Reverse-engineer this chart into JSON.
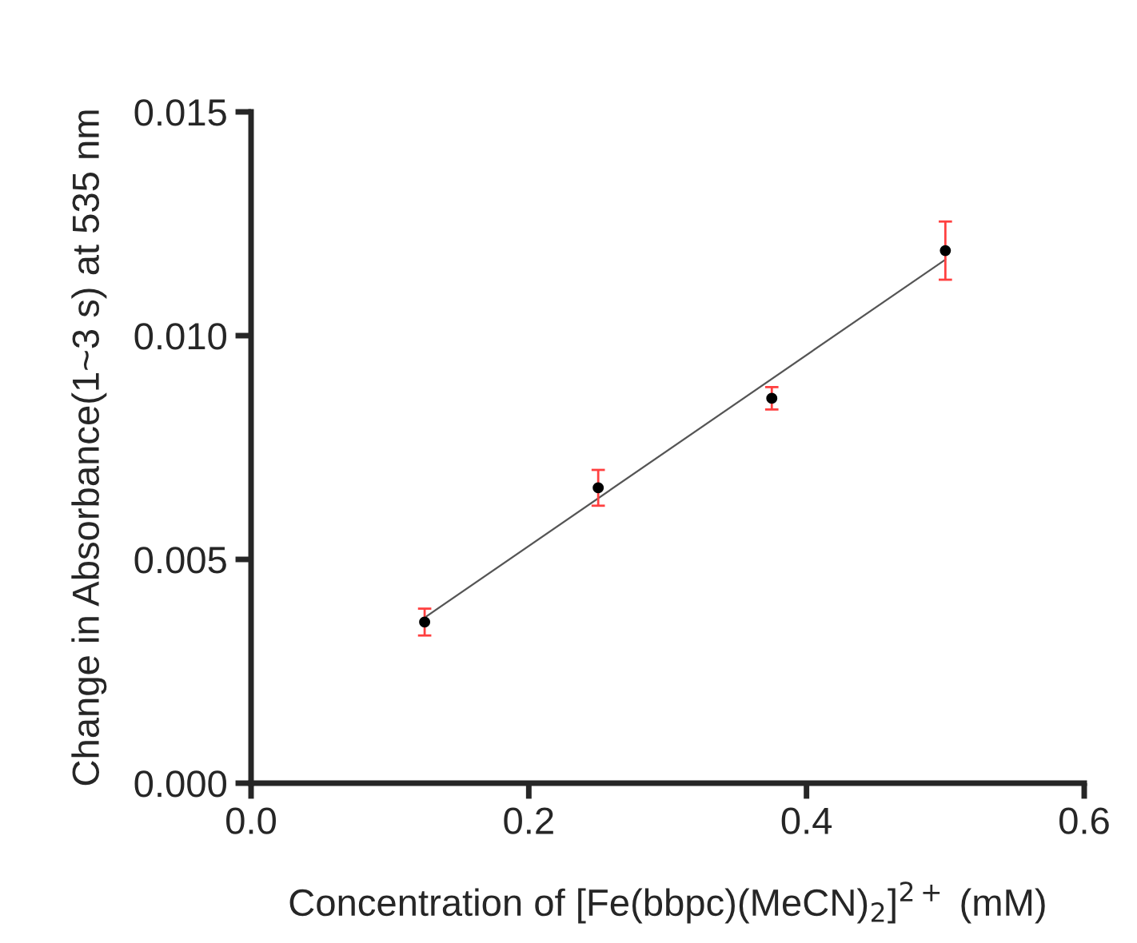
{
  "chart_data": {
    "type": "scatter",
    "xlabel": "Concentration of [Fe(bbpc)(MeCN)$_{2}$]$^{2+}$ (mM)",
    "ylabel": "Change in Absorbance(1~3 s) at 535 nm",
    "series": [
      {
        "color": "#000000",
        "marker": "circle",
        "x": [
          0.125,
          0.25,
          0.375,
          0.5
        ],
        "values": [
          0.0036,
          0.0066,
          0.0086,
          0.0119
        ],
        "errors": [
          0.0003,
          0.0004,
          0.00025,
          0.00065
        ]
      },
      {
        "type": "line",
        "color": "#555555",
        "x": [
          0.125,
          0.5
        ],
        "values": [
          0.0037,
          0.0117
        ]
      }
    ],
    "xlim": [
      0,
      0.6
    ],
    "xticks": [
      {
        "value": 0,
        "label": "0.0"
      },
      0.2,
      0.4,
      0.6
    ],
    "ylim": [
      0,
      0.015
    ],
    "yticks": [
      {
        "value": 0,
        "label": "0.000"
      },
      {
        "value": 0.005,
        "label": "0.005"
      },
      {
        "value": 0.01,
        "label": "0.010"
      },
      {
        "value": 0.015,
        "label": "0.015"
      }
    ],
    "grid": false,
    "legend": false
  }
}
